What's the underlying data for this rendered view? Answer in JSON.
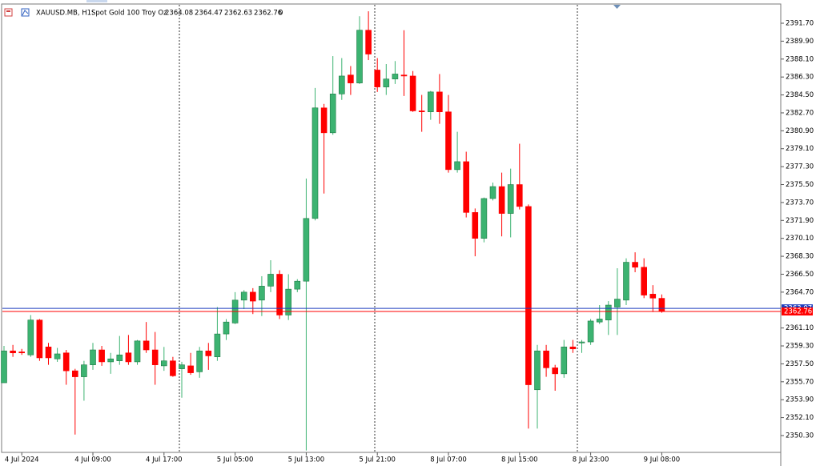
{
  "chart_data": {
    "type": "candlestick",
    "title": "XAUUSD.MB, H1:",
    "subtitle": "Spot Gold 100 Troy Oz",
    "volume": 0,
    "bull_color": "#3cb371",
    "bear_color": "#ff0000",
    "bid": 2362.76,
    "bid_color": "#ff0000",
    "ask": 2363.07,
    "ask_color": "#1e3fbf",
    "categories": [
      null,
      null,
      "4 Jul 2024",
      null,
      null,
      null,
      null,
      null,
      null,
      null,
      "4 Jul 09:00",
      null,
      null,
      null,
      null,
      null,
      null,
      null,
      "4 Jul 17:00",
      null,
      null,
      null,
      null,
      null,
      null,
      null,
      "5 Jul 05:00",
      null,
      null,
      null,
      null,
      null,
      null,
      null,
      "5 Jul 13:00",
      null,
      null,
      null,
      null,
      null,
      null,
      null,
      "5 Jul 21:00",
      null,
      null,
      null,
      null,
      null,
      null,
      null,
      "8 Jul 07:00",
      null,
      null,
      null,
      null,
      null,
      null,
      null,
      "8 Jul 15:00",
      null,
      null,
      null,
      null,
      null,
      null,
      null,
      "8 Jul 23:00",
      null,
      null,
      null,
      null,
      null,
      null,
      null,
      "9 Jul 08:00"
    ],
    "open": [
      2355.6,
      2358.8,
      2358.7,
      2358.4,
      2361.9,
      2359.2,
      2358.0,
      2358.6,
      2356.8,
      2356.2,
      2357.4,
      2358.9,
      2357.7,
      2357.8,
      2358.6,
      2357.7,
      2359.8,
      2358.9,
      2357.3,
      2357.8,
      2357.0,
      2357.3,
      2356.7,
      2358.8,
      2358.2,
      2360.5,
      2361.6,
      2363.9,
      2364.7,
      2363.9,
      2365.3,
      2366.5,
      2362.4,
      2365.0,
      2365.8,
      2372.1,
      2383.2,
      2380.7,
      2384.6,
      2386.5,
      2385.7,
      2391.0,
      2387.0,
      2385.3,
      2386.1,
      2386.5,
      2386.4,
      2382.9,
      2382.8,
      2384.8,
      2382.8,
      2377.0,
      2377.8,
      2372.7,
      2370.1,
      2374.1,
      2375.3,
      2372.6,
      2375.5,
      2373.3,
      2354.9,
      2358.8,
      2357.1,
      2356.5,
      2359.2,
      2359.6,
      2359.7,
      2361.7,
      2361.9,
      2363.2,
      2363.9,
      2367.7,
      2367.2,
      2364.5,
      2364.08
    ],
    "high": [
      2359.3,
      2359.4,
      2359.0,
      2362.4,
      2362.0,
      2359.6,
      2359.1,
      2358.9,
      2357.0,
      2357.8,
      2359.6,
      2359.3,
      2358.6,
      2360.3,
      2360.4,
      2359.9,
      2361.7,
      2360.7,
      2359.2,
      2358.2,
      2357.7,
      2358.6,
      2359.2,
      2359.6,
      2363.2,
      2362.0,
      2364.7,
      2364.9,
      2365.1,
      2366.3,
      2367.9,
      2366.9,
      2366.5,
      2366.0,
      2376.1,
      2385.2,
      2383.6,
      2388.4,
      2388.2,
      2387.4,
      2392.4,
      2392.9,
      2388.2,
      2387.6,
      2387.9,
      2391.0,
      2386.9,
      2384.5,
      2384.9,
      2386.6,
      2384.5,
      2380.8,
      2378.8,
      2373.1,
      2374.2,
      2375.7,
      2376.7,
      2377.1,
      2379.6,
      2373.5,
      2359.4,
      2359.4,
      2357.4,
      2359.9,
      2359.9,
      2359.9,
      2362.0,
      2363.4,
      2363.8,
      2367.1,
      2368.1,
      2368.7,
      2368.1,
      2365.4,
      2364.47
    ],
    "low": [
      2355.6,
      2358.2,
      2358.4,
      2358.2,
      2357.8,
      2357.4,
      2357.7,
      2355.4,
      2350.4,
      2353.8,
      2356.9,
      2357.3,
      2356.5,
      2357.4,
      2357.4,
      2357.4,
      2358.6,
      2355.4,
      2356.8,
      2356.2,
      2354.1,
      2356.4,
      2356.1,
      2356.9,
      2357.8,
      2359.9,
      2361.5,
      2363.0,
      2362.5,
      2362.3,
      2364.7,
      2362.0,
      2361.9,
      2364.7,
      2348.8,
      2371.9,
      2374.6,
      2380.5,
      2384.0,
      2384.5,
      2385.6,
      2388.0,
      2384.8,
      2384.5,
      2385.6,
      2384.4,
      2382.8,
      2380.8,
      2382.0,
      2381.6,
      2376.7,
      2376.7,
      2372.2,
      2368.3,
      2369.7,
      2373.9,
      2370.3,
      2370.2,
      2373.0,
      2351.0,
      2351.0,
      2356.2,
      2354.8,
      2356.1,
      2358.6,
      2358.6,
      2359.4,
      2361.5,
      2360.4,
      2360.4,
      2363.4,
      2366.7,
      2364.1,
      2362.7,
      2362.63
    ],
    "close": [
      2358.8,
      2358.6,
      2358.6,
      2361.9,
      2358.1,
      2358.1,
      2358.5,
      2356.8,
      2356.2,
      2357.4,
      2358.9,
      2357.7,
      2358.0,
      2358.4,
      2357.7,
      2359.8,
      2358.9,
      2357.4,
      2357.8,
      2356.3,
      2357.4,
      2356.6,
      2358.8,
      2358.3,
      2360.5,
      2361.7,
      2363.9,
      2364.7,
      2363.8,
      2365.3,
      2366.5,
      2362.4,
      2365.0,
      2365.8,
      2372.1,
      2383.2,
      2380.7,
      2384.6,
      2386.4,
      2385.7,
      2391.0,
      2388.6,
      2385.3,
      2386.1,
      2386.6,
      2386.4,
      2382.9,
      2382.8,
      2384.8,
      2382.8,
      2377.0,
      2377.8,
      2372.7,
      2370.1,
      2374.1,
      2375.3,
      2372.6,
      2375.5,
      2373.3,
      2355.4,
      2358.8,
      2357.1,
      2356.5,
      2359.2,
      2359.0,
      2359.7,
      2361.8,
      2362.0,
      2363.4,
      2364.0,
      2367.7,
      2367.2,
      2364.4,
      2364.1,
      2362.76
    ],
    "ylim": [
      2348.61,
      2393.55
    ],
    "yticks": [
      {
        "value": 2391.7,
        "label": "2391.70"
      },
      {
        "value": 2389.9,
        "label": "2389.90"
      },
      {
        "value": 2388.1,
        "label": "2388.10"
      },
      {
        "value": 2386.3,
        "label": "2386.30"
      },
      {
        "value": 2384.5,
        "label": "2384.50"
      },
      {
        "value": 2382.7,
        "label": "2382.70"
      },
      {
        "value": 2380.9,
        "label": "2380.90"
      },
      {
        "value": 2379.1,
        "label": "2379.10"
      },
      {
        "value": 2377.3,
        "label": "2377.30"
      },
      {
        "value": 2375.5,
        "label": "2375.50"
      },
      {
        "value": 2373.7,
        "label": "2373.70"
      },
      {
        "value": 2371.9,
        "label": "2371.90"
      },
      {
        "value": 2370.1,
        "label": "2370.10"
      },
      {
        "value": 2368.3,
        "label": "2368.30"
      },
      {
        "value": 2366.5,
        "label": "2366.50"
      },
      {
        "value": 2364.7,
        "label": "2364.70"
      },
      {
        "value": 2361.1,
        "label": "2361.10"
      },
      {
        "value": 2359.3,
        "label": "2359.30"
      },
      {
        "value": 2357.5,
        "label": "2357.50"
      },
      {
        "value": 2355.7,
        "label": "2355.70"
      },
      {
        "value": 2353.9,
        "label": "2353.90"
      },
      {
        "value": 2352.1,
        "label": "2352.10"
      },
      {
        "value": 2350.3,
        "label": "2350.30"
      }
    ]
  }
}
